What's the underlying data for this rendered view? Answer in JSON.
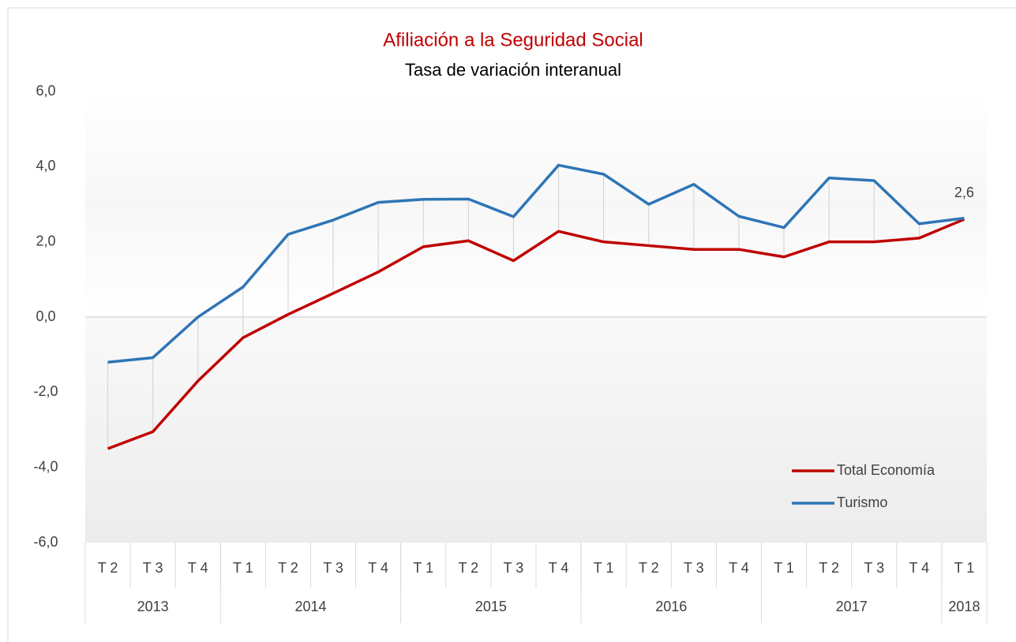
{
  "chart_data": {
    "type": "line",
    "title": "Afiliación a la Seguridad Social",
    "subtitle": "Tasa de variación interanual",
    "categories": [
      "T 2",
      "T 3",
      "T 4",
      "T 1",
      "T 2",
      "T 3",
      "T 4",
      "T 1",
      "T 2",
      "T 3",
      "T 4",
      "T 1",
      "T 2",
      "T 3",
      "T 4",
      "T 1",
      "T 2",
      "T 3",
      "T 4",
      "T 1"
    ],
    "x_groups": [
      {
        "name": "2013",
        "count": 3
      },
      {
        "name": "2014",
        "count": 4
      },
      {
        "name": "2015",
        "count": 4
      },
      {
        "name": "2016",
        "count": 4
      },
      {
        "name": "2017",
        "count": 4
      },
      {
        "name": "2018",
        "count": 1
      }
    ],
    "series": [
      {
        "name": "Total Economía",
        "color": "#c00000",
        "values": [
          -3.5,
          -3.05,
          -1.7,
          -0.55,
          0.07,
          0.63,
          1.2,
          1.87,
          2.03,
          1.5,
          2.28,
          2.0,
          1.9,
          1.8,
          1.8,
          1.6,
          2.0,
          2.0,
          2.1,
          2.6
        ],
        "value_labels": [
          null,
          null,
          null,
          null,
          null,
          null,
          null,
          null,
          null,
          null,
          null,
          null,
          null,
          null,
          null,
          null,
          null,
          null,
          null,
          "2,6"
        ]
      },
      {
        "name": "Turismo",
        "color": "#2e75b6",
        "values": [
          -1.2,
          -1.08,
          0.0,
          0.8,
          2.2,
          2.58,
          3.05,
          3.13,
          3.14,
          2.67,
          4.04,
          3.8,
          3.0,
          3.53,
          2.68,
          2.38,
          3.7,
          3.63,
          2.48,
          2.63
        ]
      }
    ],
    "ylim": [
      -6,
      6
    ],
    "yticks": [
      {
        "value": -6,
        "label": "-6,0"
      },
      {
        "value": -4,
        "label": "-4,0"
      },
      {
        "value": -2,
        "label": "-2,0"
      },
      {
        "value": 0,
        "label": "0,0"
      },
      {
        "value": 2,
        "label": "2,0"
      },
      {
        "value": 4,
        "label": "4,0"
      },
      {
        "value": 6,
        "label": "6,0"
      }
    ],
    "drop_lines": true,
    "legend": "lower right"
  }
}
